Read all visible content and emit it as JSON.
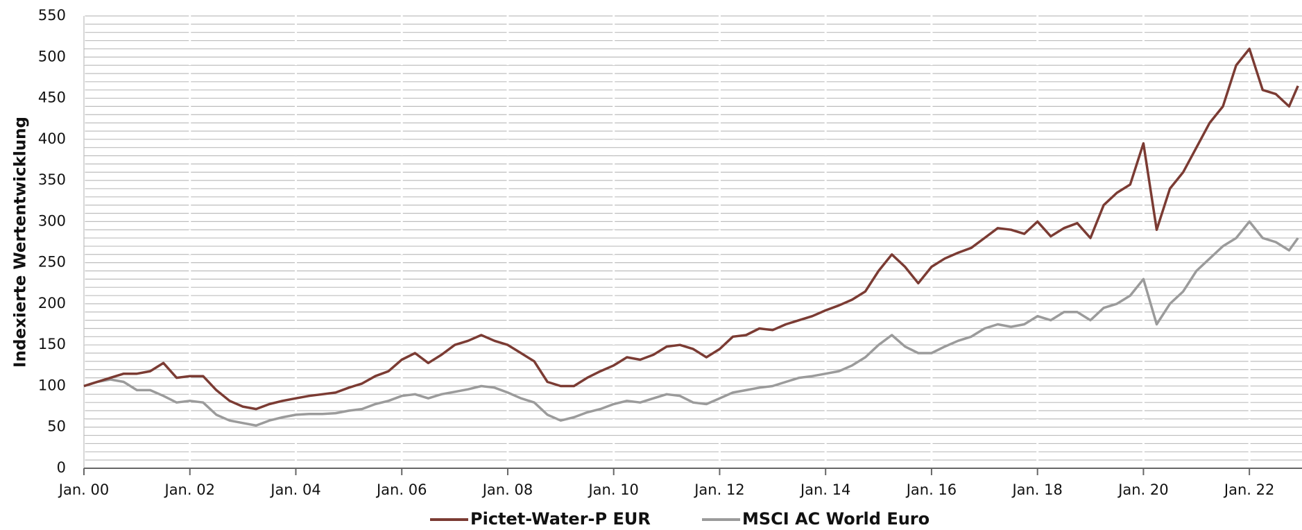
{
  "chart_data": {
    "type": "line",
    "y_label": "Indexierte Wertentwicklung",
    "x": [
      "2000-01",
      "2000-04",
      "2000-07",
      "2000-10",
      "2001-01",
      "2001-04",
      "2001-07",
      "2001-10",
      "2002-01",
      "2002-04",
      "2002-07",
      "2002-10",
      "2003-01",
      "2003-04",
      "2003-07",
      "2003-10",
      "2004-01",
      "2004-04",
      "2004-07",
      "2004-10",
      "2005-01",
      "2005-04",
      "2005-07",
      "2005-10",
      "2006-01",
      "2006-04",
      "2006-07",
      "2006-10",
      "2007-01",
      "2007-04",
      "2007-07",
      "2007-10",
      "2008-01",
      "2008-04",
      "2008-07",
      "2008-10",
      "2009-01",
      "2009-04",
      "2009-07",
      "2009-10",
      "2010-01",
      "2010-04",
      "2010-07",
      "2010-10",
      "2011-01",
      "2011-04",
      "2011-07",
      "2011-10",
      "2012-01",
      "2012-04",
      "2012-07",
      "2012-10",
      "2013-01",
      "2013-04",
      "2013-07",
      "2013-10",
      "2014-01",
      "2014-04",
      "2014-07",
      "2014-10",
      "2015-01",
      "2015-04",
      "2015-07",
      "2015-10",
      "2016-01",
      "2016-04",
      "2016-07",
      "2016-10",
      "2017-01",
      "2017-04",
      "2017-07",
      "2017-10",
      "2018-01",
      "2018-04",
      "2018-07",
      "2018-10",
      "2019-01",
      "2019-04",
      "2019-07",
      "2019-10",
      "2020-01",
      "2020-04",
      "2020-07",
      "2020-10",
      "2021-01",
      "2021-04",
      "2021-07",
      "2021-10",
      "2022-01",
      "2022-04",
      "2022-07",
      "2022-10",
      "2022-12"
    ],
    "series": [
      {
        "name": "Pictet-Water-P EUR",
        "color": "#7b3b33",
        "values": [
          100,
          105,
          110,
          115,
          115,
          118,
          128,
          110,
          112,
          112,
          95,
          82,
          75,
          72,
          78,
          82,
          85,
          88,
          90,
          92,
          98,
          103,
          112,
          118,
          132,
          140,
          128,
          138,
          150,
          155,
          162,
          155,
          150,
          140,
          130,
          105,
          100,
          100,
          110,
          118,
          125,
          135,
          132,
          138,
          148,
          150,
          145,
          135,
          145,
          160,
          162,
          170,
          168,
          175,
          180,
          185,
          192,
          198,
          205,
          215,
          240,
          260,
          245,
          225,
          245,
          255,
          262,
          268,
          280,
          292,
          290,
          285,
          300,
          282,
          292,
          298,
          280,
          320,
          335,
          345,
          395,
          290,
          340,
          360,
          390,
          420,
          440,
          490,
          510,
          460,
          455,
          440,
          465
        ]
      },
      {
        "name": "MSCI AC World Euro",
        "color": "#9b9b9b",
        "values": [
          100,
          105,
          108,
          105,
          95,
          95,
          88,
          80,
          82,
          80,
          65,
          58,
          55,
          52,
          58,
          62,
          65,
          66,
          66,
          67,
          70,
          72,
          78,
          82,
          88,
          90,
          85,
          90,
          93,
          96,
          100,
          98,
          92,
          85,
          80,
          65,
          58,
          62,
          68,
          72,
          78,
          82,
          80,
          85,
          90,
          88,
          80,
          78,
          85,
          92,
          95,
          98,
          100,
          105,
          110,
          112,
          115,
          118,
          125,
          135,
          150,
          162,
          148,
          140,
          140,
          148,
          155,
          160,
          170,
          175,
          172,
          175,
          185,
          180,
          190,
          190,
          180,
          195,
          200,
          210,
          230,
          175,
          200,
          215,
          240,
          255,
          270,
          280,
          300,
          280,
          275,
          265,
          280
        ]
      }
    ],
    "xlim": [
      "2000-01",
      "2022-12"
    ],
    "xticks": [
      {
        "value": "2000-01",
        "label": "Jan. 00"
      },
      {
        "value": "2002-01",
        "label": "Jan. 02"
      },
      {
        "value": "2004-01",
        "label": "Jan. 04"
      },
      {
        "value": "2006-01",
        "label": "Jan. 06"
      },
      {
        "value": "2008-01",
        "label": "Jan. 08"
      },
      {
        "value": "2010-01",
        "label": "Jan. 10"
      },
      {
        "value": "2012-01",
        "label": "Jan. 12"
      },
      {
        "value": "2014-01",
        "label": "Jan. 14"
      },
      {
        "value": "2016-01",
        "label": "Jan. 16"
      },
      {
        "value": "2018-01",
        "label": "Jan. 18"
      },
      {
        "value": "2020-01",
        "label": "Jan. 20"
      },
      {
        "value": "2022-01",
        "label": "Jan. 22"
      }
    ],
    "ylim": [
      0,
      550
    ],
    "yticks": [
      0,
      50,
      100,
      150,
      200,
      250,
      300,
      350,
      400,
      450,
      500,
      550
    ],
    "grid": true,
    "legend": "bottom"
  }
}
